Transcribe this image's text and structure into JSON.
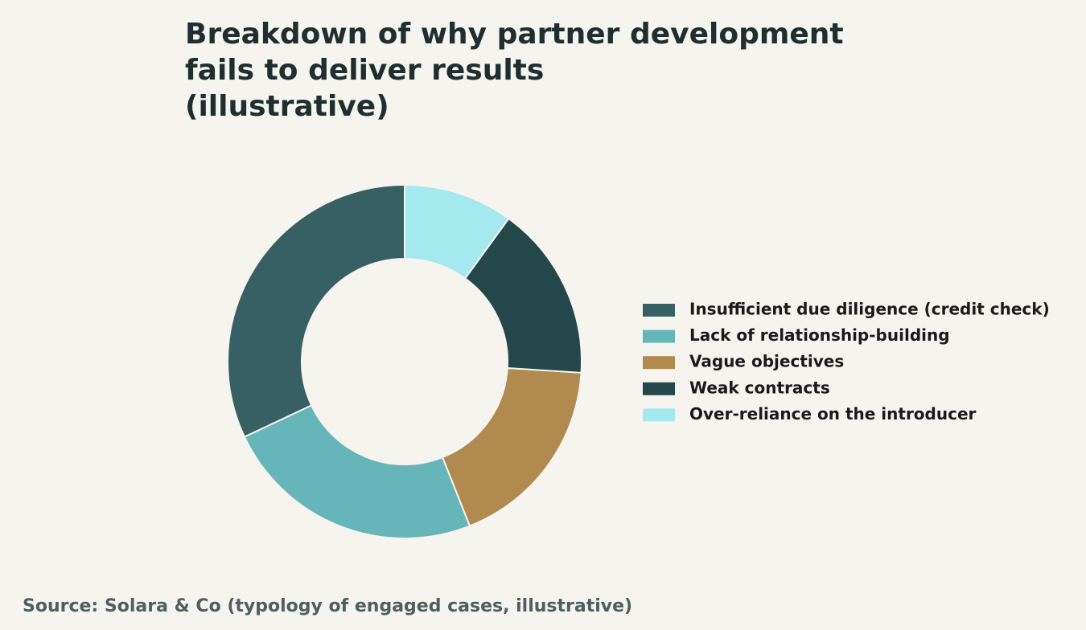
{
  "chart_data": {
    "type": "donut",
    "title": "Breakdown of why partner development fails to deliver results (illustrative)",
    "source": "Source: Solara & Co (typology of engaged cases, illustrative)",
    "series": [
      {
        "name": "Insufficient due diligence (credit check)",
        "color": "#376062",
        "value": 32
      },
      {
        "name": "Lack of relationship-building",
        "color": "#66b5b9",
        "value": 24
      },
      {
        "name": "Vague objectives",
        "color": "#b08a4f",
        "value": 18
      },
      {
        "name": "Weak contracts",
        "color": "#24484a",
        "value": 16
      },
      {
        "name": "Over-reliance on the introducer",
        "color": "#a4e9ee",
        "value": 10
      }
    ],
    "legend": "right"
  }
}
